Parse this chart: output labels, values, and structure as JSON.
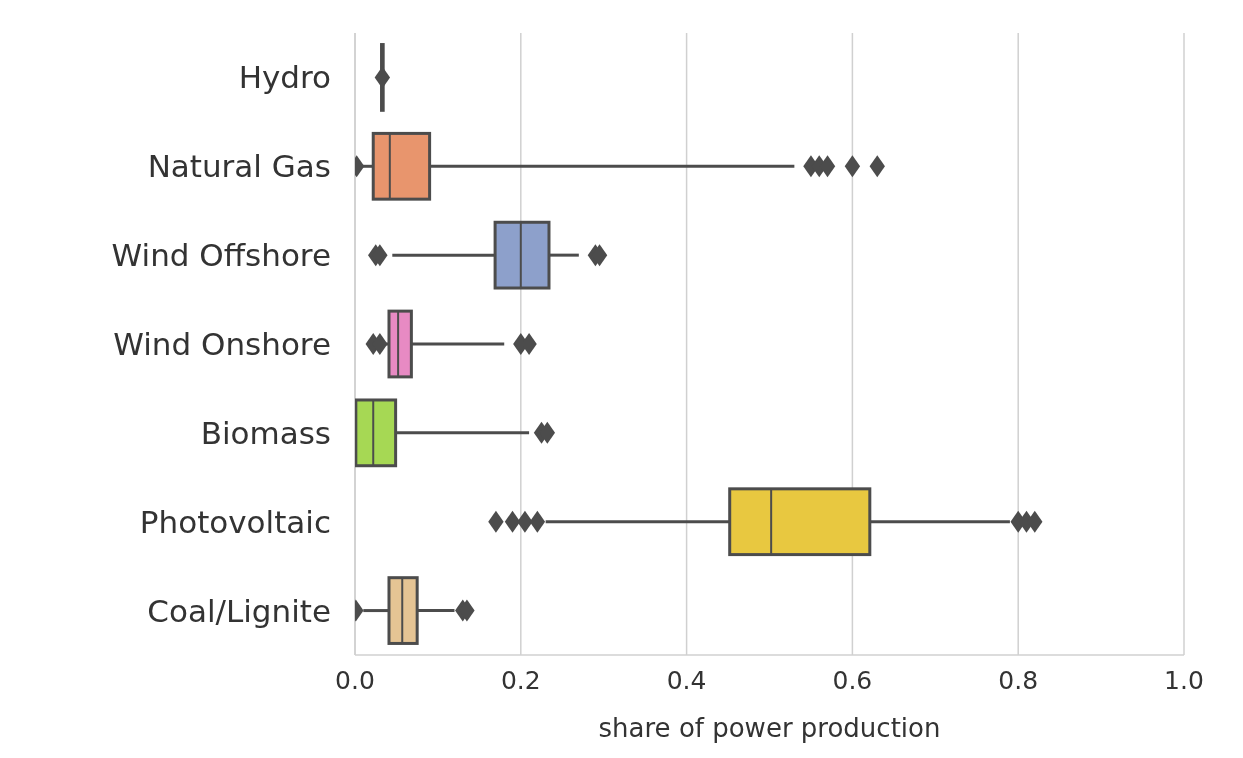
{
  "chart_data": {
    "type": "box",
    "orientation": "horizontal",
    "xlabel": "share of power production",
    "categories": [
      "Hydro",
      "Natural Gas",
      "Wind Offshore",
      "Wind Onshore",
      "Biomass",
      "Photovoltaic",
      "Coal/Lignite"
    ],
    "colors": [
      "#66c2a5",
      "#e8956d",
      "#8da0cb",
      "#e78ac3",
      "#a6d854",
      "#e8c840",
      "#e5c494"
    ],
    "boxes": [
      {
        "low": 0.03,
        "q1": 0.032,
        "median": 0.033,
        "q3": 0.034,
        "high": 0.035,
        "outliers": [
          0.033
        ]
      },
      {
        "low": 0.005,
        "q1": 0.022,
        "median": 0.042,
        "q3": 0.09,
        "high": 0.53,
        "outliers": [
          0.002,
          0.55,
          0.56,
          0.57,
          0.6,
          0.63
        ]
      },
      {
        "low": 0.045,
        "q1": 0.169,
        "median": 0.2,
        "q3": 0.234,
        "high": 0.27,
        "outliers": [
          0.025,
          0.03,
          0.29,
          0.295
        ]
      },
      {
        "low": 0.035,
        "q1": 0.041,
        "median": 0.052,
        "q3": 0.068,
        "high": 0.18,
        "outliers": [
          0.022,
          0.03,
          0.2,
          0.21
        ]
      },
      {
        "low": 0,
        "q1": 0.001,
        "median": 0.022,
        "q3": 0.049,
        "high": 0.21,
        "outliers": [
          0.225,
          0.232
        ]
      },
      {
        "low": 0.23,
        "q1": 0.452,
        "median": 0.502,
        "q3": 0.621,
        "high": 0.79,
        "outliers": [
          0.17,
          0.19,
          0.205,
          0.22,
          0.8,
          0.81,
          0.82
        ]
      },
      {
        "low": 0.01,
        "q1": 0.041,
        "median": 0.057,
        "q3": 0.075,
        "high": 0.12,
        "outliers": [
          0.001,
          0.13,
          0.135
        ]
      }
    ],
    "xlim": [
      0,
      1
    ],
    "xticks": [
      {
        "value": 0,
        "label": "0.0"
      },
      {
        "value": 0.2,
        "label": "0.2"
      },
      {
        "value": 0.4,
        "label": "0.4"
      },
      {
        "value": 0.6,
        "label": "0.6"
      },
      {
        "value": 0.8,
        "label": "0.8"
      },
      {
        "value": 1,
        "label": "1.0"
      }
    ],
    "grid": "x",
    "marker": "diamond"
  }
}
